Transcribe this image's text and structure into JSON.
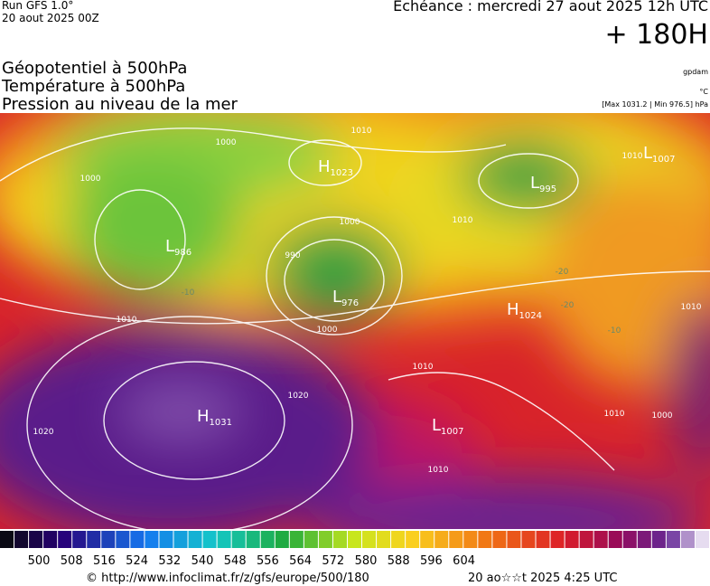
{
  "header": {
    "run": "Run GFS 1.0°",
    "run_date": "20 aout 2025 00Z",
    "valid_time": "Echéance : mercredi 27 aout 2025 12h UTC",
    "lead_time": "+ 180H",
    "titles": [
      "Géopotentiel à 500hPa",
      "Température à 500hPa",
      "Pression au niveau de la mer"
    ],
    "units": [
      "gpdam",
      "°C",
      "[Max 1031.2 | Min 976.5] hPa"
    ]
  },
  "map": {
    "centers": [
      {
        "type": "H",
        "value": "1023"
      },
      {
        "type": "L",
        "value": "986"
      },
      {
        "type": "L",
        "value": "995"
      },
      {
        "type": "L",
        "value": "1007"
      },
      {
        "type": "L",
        "value": "976"
      },
      {
        "type": "H",
        "value": "1024"
      },
      {
        "type": "H",
        "value": "1031"
      },
      {
        "type": "L",
        "value": "1007"
      }
    ],
    "isobar_labels": [
      "1000",
      "1010",
      "1000",
      "1010",
      "1000",
      "990",
      "1000",
      "1010",
      "1010",
      "1020",
      "1020",
      "1010",
      "1010",
      "1000",
      "1010",
      "1010"
    ],
    "temperature_labels": [
      "-10",
      "-20",
      "-20",
      "-10"
    ]
  },
  "colorbar": {
    "labels": [
      "500",
      "508",
      "516",
      "524",
      "532",
      "540",
      "548",
      "556",
      "564",
      "572",
      "580",
      "588",
      "596",
      "604"
    ]
  },
  "footer": {
    "source": "© http://www.infoclimat.fr/z/gfs/europe/500/180",
    "generated": "20 ao☆☆t 2025  4:25 UTC"
  }
}
